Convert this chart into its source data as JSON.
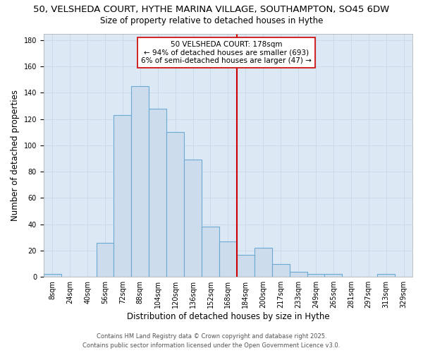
{
  "title_line1": "50, VELSHEDA COURT, HYTHE MARINA VILLAGE, SOUTHAMPTON, SO45 6DW",
  "title_line2": "Size of property relative to detached houses in Hythe",
  "xlabel": "Distribution of detached houses by size in Hythe",
  "ylabel": "Number of detached properties",
  "bin_labels": [
    "8sqm",
    "24sqm",
    "40sqm",
    "56sqm",
    "72sqm",
    "88sqm",
    "104sqm",
    "120sqm",
    "136sqm",
    "152sqm",
    "168sqm",
    "184sqm",
    "200sqm",
    "217sqm",
    "233sqm",
    "249sqm",
    "265sqm",
    "281sqm",
    "297sqm",
    "313sqm",
    "329sqm"
  ],
  "counts": [
    2,
    0,
    0,
    26,
    123,
    145,
    128,
    110,
    89,
    38,
    27,
    17,
    22,
    10,
    4,
    2,
    2,
    0,
    0,
    2,
    0
  ],
  "bar_facecolor": "#ccdcec",
  "bar_edgecolor": "#6aaad4",
  "vline_x_bin": 11,
  "vline_color": "#cc0000",
  "annotation_title": "50 VELSHEDA COURT: 178sqm",
  "annotation_line2": "← 94% of detached houses are smaller (693)",
  "annotation_line3": "6% of semi-detached houses are larger (47) →",
  "annotation_box_edgecolor": "#cc0000",
  "ylim": [
    0,
    185
  ],
  "yticks": [
    0,
    20,
    40,
    60,
    80,
    100,
    120,
    140,
    160,
    180
  ],
  "grid_color": "#c8d8e8",
  "background_color": "#dce8f4",
  "footer_line1": "Contains HM Land Registry data © Crown copyright and database right 2025.",
  "footer_line2": "Contains public sector information licensed under the Open Government Licence v3.0.",
  "title_fontsize": 9.5,
  "subtitle_fontsize": 8.5,
  "axis_label_fontsize": 8.5,
  "tick_fontsize": 7,
  "annotation_fontsize": 7.5,
  "footer_fontsize": 6
}
